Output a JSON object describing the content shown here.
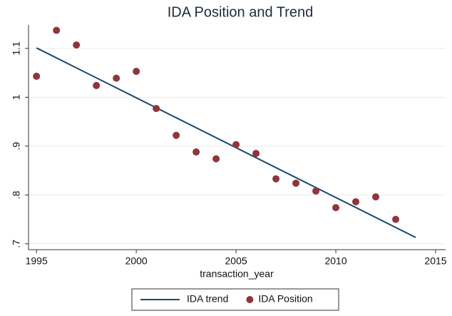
{
  "chart_data": {
    "type": "scatter",
    "title": "IDA Position and Trend",
    "x_label": "transaction_year",
    "xlim": [
      1994.6,
      2015.5
    ],
    "xticks": [
      1995,
      2000,
      2005,
      2010,
      2015
    ],
    "ylim": [
      0.688,
      1.148
    ],
    "yticks": [
      {
        "value": 0.7,
        "label": ".7"
      },
      {
        "value": 0.8,
        "label": ".8"
      },
      {
        "value": 0.9,
        "label": ".9"
      },
      1,
      1.1
    ],
    "grid": true,
    "legend": "bottom",
    "series": [
      {
        "name": "IDA trend",
        "type": "line",
        "color": "#1a476f",
        "x": [
          1995,
          2014
        ],
        "values": [
          1.101,
          0.713
        ]
      },
      {
        "name": "IDA Position",
        "type": "scatter",
        "color": "#90353b",
        "x": [
          1995,
          1996,
          1997,
          1998,
          1999,
          2000,
          2001,
          2002,
          2003,
          2004,
          2005,
          2006,
          2007,
          2008,
          2009,
          2010,
          2011,
          2012,
          2013
        ],
        "values": [
          1.043,
          1.137,
          1.107,
          1.024,
          1.039,
          1.053,
          0.977,
          0.922,
          0.888,
          0.874,
          0.903,
          0.885,
          0.833,
          0.824,
          0.808,
          0.774,
          0.786,
          0.796,
          0.75
        ]
      }
    ]
  }
}
